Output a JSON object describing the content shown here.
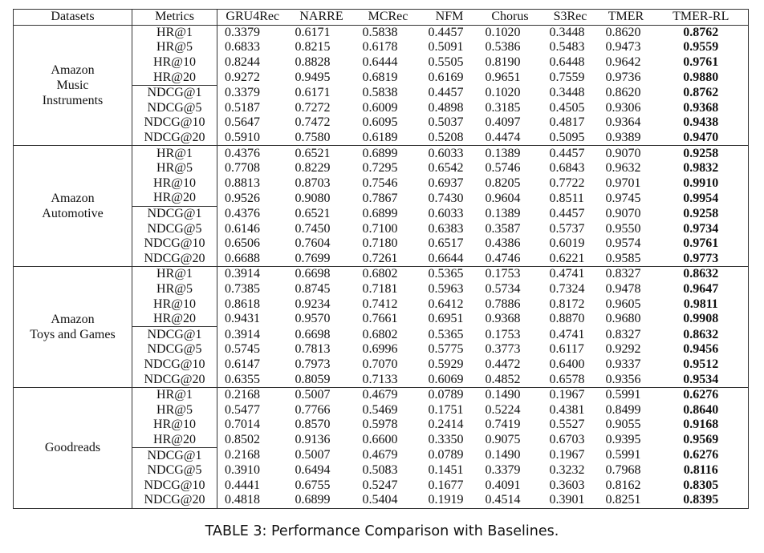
{
  "table": {
    "headers": [
      "Datasets",
      "Metrics",
      "GRU4Rec",
      "NARRE",
      "MCRec",
      "NFM",
      "Chorus",
      "S3Rec",
      "TMER",
      "TMER-RL"
    ],
    "groups": [
      {
        "dataset_lines": [
          "Amazon",
          "Music",
          "Instruments"
        ],
        "rows": [
          {
            "metric": "HR@1",
            "values": [
              "0.3379",
              "0.6171",
              "0.5838",
              "0.4457",
              "0.1020",
              "0.3448",
              "0.8620",
              "0.8762"
            ]
          },
          {
            "metric": "HR@5",
            "values": [
              "0.6833",
              "0.8215",
              "0.6178",
              "0.5091",
              "0.5386",
              "0.5483",
              "0.9473",
              "0.9559"
            ]
          },
          {
            "metric": "HR@10",
            "values": [
              "0.8244",
              "0.8828",
              "0.6444",
              "0.5505",
              "0.8190",
              "0.6448",
              "0.9642",
              "0.9761"
            ]
          },
          {
            "metric": "HR@20",
            "values": [
              "0.9272",
              "0.9495",
              "0.6819",
              "0.6169",
              "0.9651",
              "0.7559",
              "0.9736",
              "0.9880"
            ]
          },
          {
            "metric": "NDCG@1",
            "values": [
              "0.3379",
              "0.6171",
              "0.5838",
              "0.4457",
              "0.1020",
              "0.3448",
              "0.8620",
              "0.8762"
            ]
          },
          {
            "metric": "NDCG@5",
            "values": [
              "0.5187",
              "0.7272",
              "0.6009",
              "0.4898",
              "0.3185",
              "0.4505",
              "0.9306",
              "0.9368"
            ]
          },
          {
            "metric": "NDCG@10",
            "values": [
              "0.5647",
              "0.7472",
              "0.6095",
              "0.5037",
              "0.4097",
              "0.4817",
              "0.9364",
              "0.9438"
            ]
          },
          {
            "metric": "NDCG@20",
            "values": [
              "0.5910",
              "0.7580",
              "0.6189",
              "0.5208",
              "0.4474",
              "0.5095",
              "0.9389",
              "0.9470"
            ]
          }
        ]
      },
      {
        "dataset_lines": [
          "Amazon",
          "Automotive"
        ],
        "rows": [
          {
            "metric": "HR@1",
            "values": [
              "0.4376",
              "0.6521",
              "0.6899",
              "0.6033",
              "0.1389",
              "0.4457",
              "0.9070",
              "0.9258"
            ]
          },
          {
            "metric": "HR@5",
            "values": [
              "0.7708",
              "0.8229",
              "0.7295",
              "0.6542",
              "0.5746",
              "0.6843",
              "0.9632",
              "0.9832"
            ]
          },
          {
            "metric": "HR@10",
            "values": [
              "0.8813",
              "0.8703",
              "0.7546",
              "0.6937",
              "0.8205",
              "0.7722",
              "0.9701",
              "0.9910"
            ]
          },
          {
            "metric": "HR@20",
            "values": [
              "0.9526",
              "0.9080",
              "0.7867",
              "0.7430",
              "0.9604",
              "0.8511",
              "0.9745",
              "0.9954"
            ]
          },
          {
            "metric": "NDCG@1",
            "values": [
              "0.4376",
              "0.6521",
              "0.6899",
              "0.6033",
              "0.1389",
              "0.4457",
              "0.9070",
              "0.9258"
            ]
          },
          {
            "metric": "NDCG@5",
            "values": [
              "0.6146",
              "0.7450",
              "0.7100",
              "0.6383",
              "0.3587",
              "0.5737",
              "0.9550",
              "0.9734"
            ]
          },
          {
            "metric": "NDCG@10",
            "values": [
              "0.6506",
              "0.7604",
              "0.7180",
              "0.6517",
              "0.4386",
              "0.6019",
              "0.9574",
              "0.9761"
            ]
          },
          {
            "metric": "NDCG@20",
            "values": [
              "0.6688",
              "0.7699",
              "0.7261",
              "0.6644",
              "0.4746",
              "0.6221",
              "0.9585",
              "0.9773"
            ]
          }
        ]
      },
      {
        "dataset_lines": [
          "Amazon",
          "Toys and Games"
        ],
        "rows": [
          {
            "metric": "HR@1",
            "values": [
              "0.3914",
              "0.6698",
              "0.6802",
              "0.5365",
              "0.1753",
              "0.4741",
              "0.8327",
              "0.8632"
            ]
          },
          {
            "metric": "HR@5",
            "values": [
              "0.7385",
              "0.8745",
              "0.7181",
              "0.5963",
              "0.5734",
              "0.7324",
              "0.9478",
              "0.9647"
            ]
          },
          {
            "metric": "HR@10",
            "values": [
              "0.8618",
              "0.9234",
              "0.7412",
              "0.6412",
              "0.7886",
              "0.8172",
              "0.9605",
              "0.9811"
            ]
          },
          {
            "metric": "HR@20",
            "values": [
              "0.9431",
              "0.9570",
              "0.7661",
              "0.6951",
              "0.9368",
              "0.8870",
              "0.9680",
              "0.9908"
            ]
          },
          {
            "metric": "NDCG@1",
            "values": [
              "0.3914",
              "0.6698",
              "0.6802",
              "0.5365",
              "0.1753",
              "0.4741",
              "0.8327",
              "0.8632"
            ]
          },
          {
            "metric": "NDCG@5",
            "values": [
              "0.5745",
              "0.7813",
              "0.6996",
              "0.5775",
              "0.3773",
              "0.6117",
              "0.9292",
              "0.9456"
            ]
          },
          {
            "metric": "NDCG@10",
            "values": [
              "0.6147",
              "0.7973",
              "0.7070",
              "0.5929",
              "0.4472",
              "0.6400",
              "0.9337",
              "0.9512"
            ]
          },
          {
            "metric": "NDCG@20",
            "values": [
              "0.6355",
              "0.8059",
              "0.7133",
              "0.6069",
              "0.4852",
              "0.6578",
              "0.9356",
              "0.9534"
            ]
          }
        ]
      },
      {
        "dataset_lines": [
          "Goodreads"
        ],
        "rows": [
          {
            "metric": "HR@1",
            "values": [
              "0.2168",
              "0.5007",
              "0.4679",
              "0.0789",
              "0.1490",
              "0.1967",
              "0.5991",
              "0.6276"
            ]
          },
          {
            "metric": "HR@5",
            "values": [
              "0.5477",
              "0.7766",
              "0.5469",
              "0.1751",
              "0.5224",
              "0.4381",
              "0.8499",
              "0.8640"
            ]
          },
          {
            "metric": "HR@10",
            "values": [
              "0.7014",
              "0.8570",
              "0.5978",
              "0.2414",
              "0.7419",
              "0.5527",
              "0.9055",
              "0.9168"
            ]
          },
          {
            "metric": "HR@20",
            "values": [
              "0.8502",
              "0.9136",
              "0.6600",
              "0.3350",
              "0.9075",
              "0.6703",
              "0.9395",
              "0.9569"
            ]
          },
          {
            "metric": "NDCG@1",
            "values": [
              "0.2168",
              "0.5007",
              "0.4679",
              "0.0789",
              "0.1490",
              "0.1967",
              "0.5991",
              "0.6276"
            ]
          },
          {
            "metric": "NDCG@5",
            "values": [
              "0.3910",
              "0.6494",
              "0.5083",
              "0.1451",
              "0.3379",
              "0.3232",
              "0.7968",
              "0.8116"
            ]
          },
          {
            "metric": "NDCG@10",
            "values": [
              "0.4441",
              "0.6755",
              "0.5247",
              "0.1677",
              "0.4091",
              "0.3603",
              "0.8162",
              "0.8305"
            ]
          },
          {
            "metric": "NDCG@20",
            "values": [
              "0.4818",
              "0.6899",
              "0.5404",
              "0.1919",
              "0.4514",
              "0.3901",
              "0.8251",
              "0.8395"
            ]
          }
        ]
      }
    ]
  },
  "caption": "TABLE 3: Performance Comparison with Baselines."
}
